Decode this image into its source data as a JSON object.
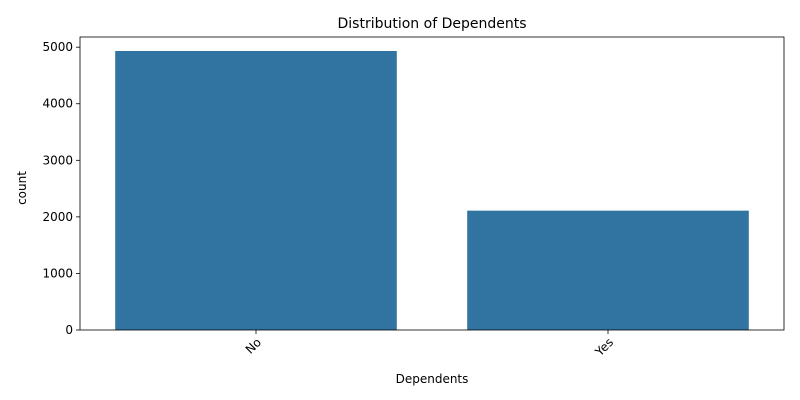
{
  "chart_data": {
    "type": "bar",
    "title": "Distribution of Dependents",
    "xlabel": "Dependents",
    "ylabel": "count",
    "categories": [
      "No",
      "Yes"
    ],
    "values": [
      4933,
      2110
    ],
    "ylim": [
      0,
      5180
    ],
    "yticks": [
      0,
      1000,
      2000,
      3000,
      4000,
      5000
    ],
    "ytick_labels": [
      "0",
      "1000",
      "2000",
      "3000",
      "4000",
      "5000"
    ],
    "bar_color": "#3274a1",
    "grid": false,
    "xtick_rotation": 45
  }
}
